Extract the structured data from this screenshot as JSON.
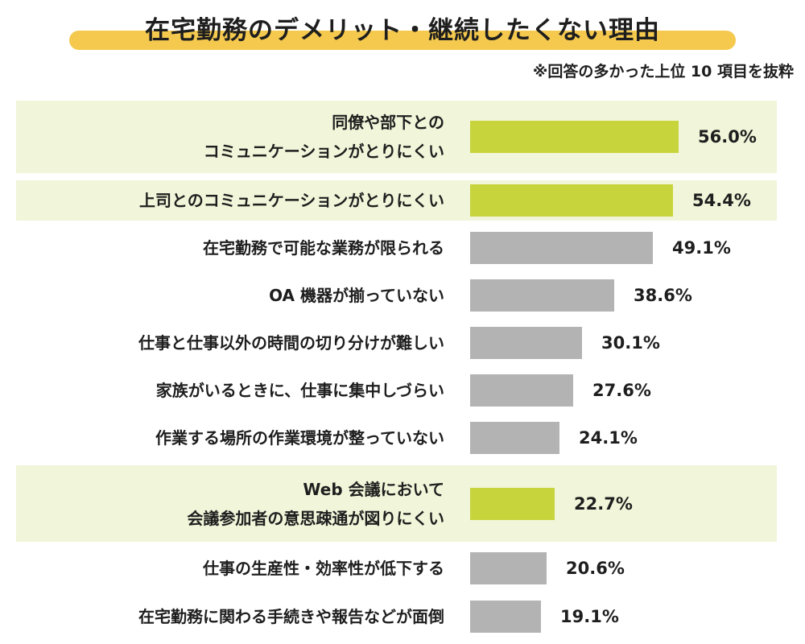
{
  "header": {
    "title": "在宅勤務のデメリット・継続したくない理由",
    "note": "※回答の多かった上位 10 項目を抜粋"
  },
  "colors": {
    "highlight_bar": "#c8d43b",
    "normal_bar": "#b3b3b3",
    "highlight_row_bg": "#f1f5d9",
    "title_underline": "#f5c94e"
  },
  "chart_data": {
    "type": "bar",
    "orientation": "horizontal",
    "unit": "%",
    "xlim": [
      0,
      56
    ],
    "grid": false,
    "categories": [
      [
        "同僚や部下との",
        "コミュニケーションがとりにくい"
      ],
      [
        "上司とのコミュニケーションがとりにくい"
      ],
      [
        "在宅勤務で可能な業務が限られる"
      ],
      [
        "OA 機器が揃っていない"
      ],
      [
        "仕事と仕事以外の時間の切り分けが難しい"
      ],
      [
        "家族がいるときに、仕事に集中しづらい"
      ],
      [
        "作業する場所の作業環境が整っていない"
      ],
      [
        "Web 会議において",
        "会議参加者の意思疎通が図りにくい"
      ],
      [
        "仕事の生産性・効率性が低下する"
      ],
      [
        "在宅勤務に関わる手続きや報告などが面倒"
      ]
    ],
    "values": [
      56.0,
      54.4,
      49.1,
      38.6,
      30.1,
      27.6,
      24.1,
      22.7,
      20.6,
      19.1
    ],
    "value_labels": [
      "56.0%",
      "54.4%",
      "49.1%",
      "38.6%",
      "30.1%",
      "27.6%",
      "24.1%",
      "22.7%",
      "20.6%",
      "19.1%"
    ],
    "highlighted": [
      true,
      true,
      false,
      false,
      false,
      false,
      false,
      true,
      false,
      false
    ]
  }
}
